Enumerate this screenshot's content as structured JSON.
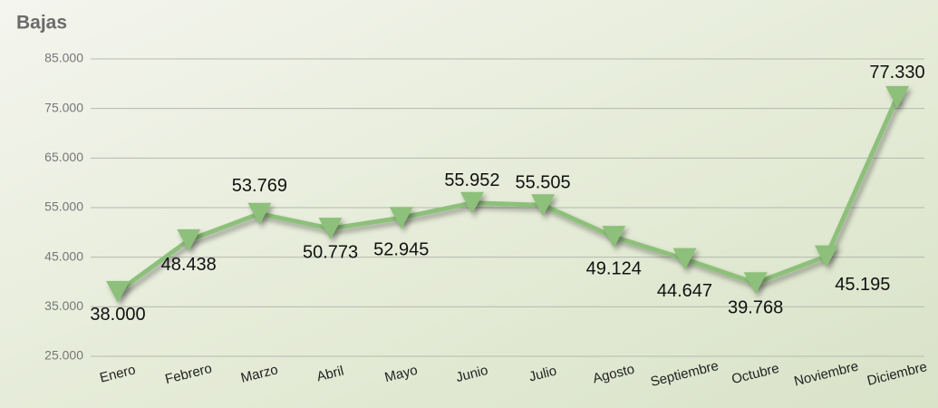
{
  "chart_data": {
    "type": "line",
    "title": "Bajas",
    "categories": [
      "Enero",
      "Febrero",
      "Marzo",
      "Abril",
      "Mayo",
      "Junio",
      "Julio",
      "Agosto",
      "Septiembre",
      "Octubre",
      "Noviembre",
      "Diciembre"
    ],
    "series": [
      {
        "name": "Bajas",
        "color": "#8dc07a",
        "values": [
          38000,
          48438,
          53769,
          50773,
          52945,
          55952,
          55505,
          49124,
          44647,
          39768,
          45195,
          77330
        ],
        "value_labels": [
          "38.000",
          "48.438",
          "53.769",
          "50.773",
          "52.945",
          "55.952",
          "55.505",
          "49.124",
          "44.647",
          "39.768",
          "45.195",
          "77.330"
        ]
      }
    ],
    "ylim": [
      25000,
      85000
    ],
    "yticks": [
      {
        "value": 25000,
        "label": "25.000"
      },
      {
        "value": 35000,
        "label": "35.000"
      },
      {
        "value": 45000,
        "label": "45.000"
      },
      {
        "value": 55000,
        "label": "55.000"
      },
      {
        "value": 65000,
        "label": "65.000"
      },
      {
        "value": 75000,
        "label": "75.000"
      },
      {
        "value": 85000,
        "label": "85.000"
      }
    ],
    "grid": true
  }
}
